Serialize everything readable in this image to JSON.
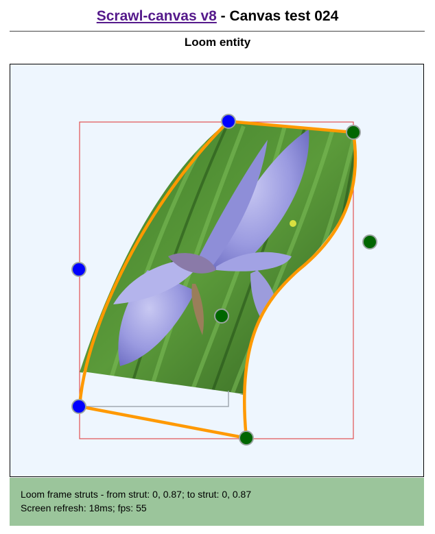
{
  "header": {
    "link_text": "Scrawl-canvas v8",
    "title_rest": " - Canvas test 024"
  },
  "subtitle": "Loom entity",
  "report": {
    "line1": "Loom frame struts - from strut: 0, 0.87; to strut: 0, 0.87",
    "line2": "Screen refresh: 18ms; fps: 55"
  },
  "colors": {
    "canvas_background": "#eef6fe",
    "report_background": "#9bc59b",
    "link": "#551a8b",
    "loom_outline": "#ff9900",
    "bounding_box": "#e05050",
    "handle_blue": "#0000ff",
    "handle_green": "#006600"
  },
  "image": {
    "subject": "blue iris flower among green grass"
  }
}
